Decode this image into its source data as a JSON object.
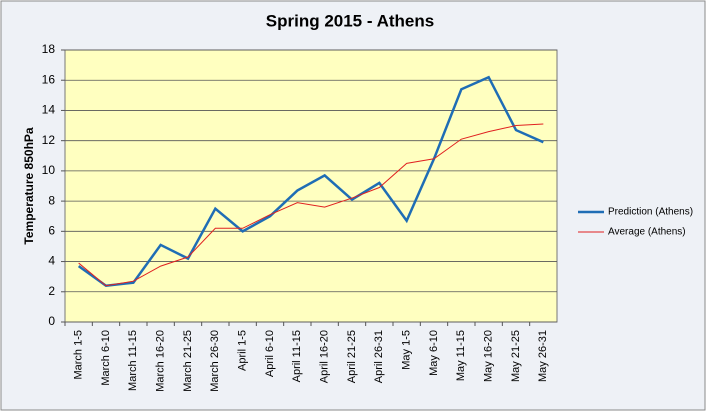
{
  "chart_data": {
    "type": "line",
    "title": "Spring 2015 - Athens",
    "y_label": "Temperature 850hPa",
    "categories": [
      "March 1-5",
      "March 6-10",
      "March 11-15",
      "March 16-20",
      "March 21-25",
      "March 26-30",
      "April 1-5",
      "April 6-10",
      "April 11-15",
      "April 16-20",
      "April 21-25",
      "April 26-31",
      "May 1-5",
      "May 6-10",
      "May 11-15",
      "May 16-20",
      "May 21-25",
      "May 26-31"
    ],
    "series": [
      {
        "name": "Prediction (Athens)",
        "color": "#1f6db5",
        "width": 2.5,
        "values": [
          3.7,
          2.4,
          2.6,
          5.1,
          4.2,
          7.5,
          6.0,
          7.0,
          8.7,
          9.7,
          8.1,
          9.2,
          6.7,
          10.8,
          15.4,
          16.2,
          12.7,
          11.9
        ]
      },
      {
        "name": "Average (Athens)",
        "color": "#e02020",
        "width": 1,
        "values": [
          3.9,
          2.4,
          2.7,
          3.7,
          4.3,
          6.2,
          6.2,
          7.1,
          7.9,
          7.6,
          8.2,
          8.9,
          10.5,
          10.8,
          12.1,
          12.6,
          13.0,
          13.1
        ]
      }
    ],
    "ylim": [
      0,
      18
    ],
    "yticks": [
      0,
      2,
      4,
      6,
      8,
      10,
      12,
      14,
      16,
      18
    ],
    "grid": true,
    "legend": "right"
  }
}
